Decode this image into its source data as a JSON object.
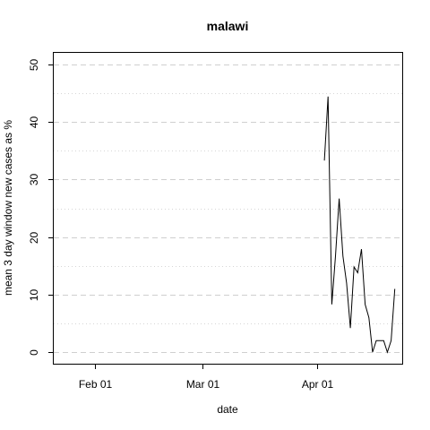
{
  "chart_data": {
    "type": "line",
    "title": "malawi",
    "xlabel": "date",
    "ylabel": "mean  3  day window new cases as %",
    "xlim": [
      "2020-01-21",
      "2020-04-24"
    ],
    "ylim": [
      -2,
      52
    ],
    "x_ticks": [
      {
        "date": "2020-02-01",
        "label": "Feb 01"
      },
      {
        "date": "2020-03-01",
        "label": "Mar 01"
      },
      {
        "date": "2020-04-01",
        "label": "Apr 01"
      }
    ],
    "y_ticks": [
      0,
      10,
      20,
      30,
      40,
      50
    ],
    "y_minor_grid": [
      5,
      15,
      25,
      35,
      45
    ],
    "grid": true,
    "series": [
      {
        "x": [
          "2020-04-03",
          "2020-04-04",
          "2020-04-05",
          "2020-04-06",
          "2020-04-07",
          "2020-04-08",
          "2020-04-09",
          "2020-04-10",
          "2020-04-11",
          "2020-04-12",
          "2020-04-13",
          "2020-04-14",
          "2020-04-15",
          "2020-04-16",
          "2020-04-17",
          "2020-04-18",
          "2020-04-19",
          "2020-04-20",
          "2020-04-21",
          "2020-04-22"
        ],
        "values": [
          33.3,
          44.4,
          8.3,
          16.7,
          26.7,
          16.7,
          12.0,
          4.2,
          14.8,
          13.8,
          17.9,
          8.3,
          6.0,
          0.0,
          2.0,
          2.0,
          2.0,
          0.0,
          2.0,
          11.0
        ]
      }
    ]
  }
}
